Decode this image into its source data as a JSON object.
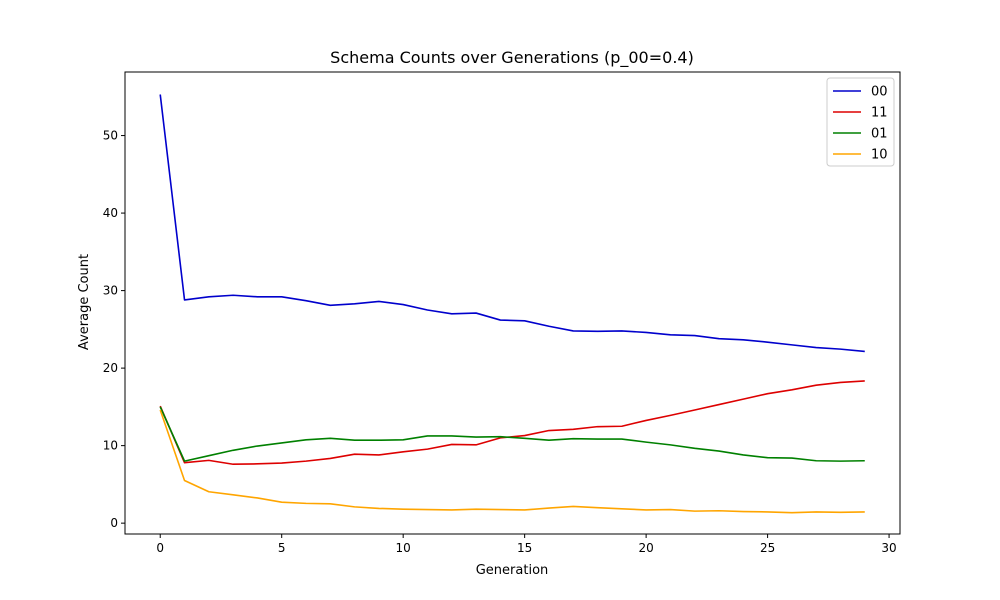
{
  "chart_data": {
    "type": "line",
    "title": "Schema Counts over Generations (p_00=0.4)",
    "xlabel": "Generation",
    "ylabel": "Average Count",
    "xlim": [
      -1.45,
      30.45
    ],
    "ylim": [
      -1.4,
      58.2
    ],
    "xticks": [
      0,
      5,
      10,
      15,
      20,
      25,
      30
    ],
    "yticks": [
      0,
      10,
      20,
      30,
      40,
      50
    ],
    "grid": false,
    "legend_position": "top-right",
    "x": [
      0,
      1,
      2,
      3,
      4,
      5,
      6,
      7,
      8,
      9,
      10,
      11,
      12,
      13,
      14,
      15,
      16,
      17,
      18,
      19,
      20,
      21,
      22,
      23,
      24,
      25,
      26,
      27,
      28,
      29
    ],
    "series": [
      {
        "name": "00",
        "color": "#0000cc",
        "values": [
          55.3,
          28.8,
          29.2,
          29.4,
          29.2,
          29.2,
          28.7,
          28.1,
          28.3,
          28.6,
          28.2,
          27.5,
          27.0,
          27.1,
          26.2,
          26.1,
          25.4,
          24.8,
          24.75,
          24.8,
          24.6,
          24.3,
          24.2,
          23.8,
          23.65,
          23.35,
          23.0,
          22.65,
          22.45,
          22.15
        ]
      },
      {
        "name": "11",
        "color": "#dd0000",
        "values": [
          15.1,
          7.8,
          8.1,
          7.6,
          7.65,
          7.75,
          8.0,
          8.35,
          8.9,
          8.8,
          9.2,
          9.55,
          10.15,
          10.1,
          11.0,
          11.3,
          11.95,
          12.1,
          12.45,
          12.5,
          13.25,
          13.9,
          14.6,
          15.3,
          16.0,
          16.7,
          17.2,
          17.8,
          18.15,
          18.35
        ]
      },
      {
        "name": "01",
        "color": "#008000",
        "values": [
          15.0,
          8.0,
          8.7,
          9.4,
          9.95,
          10.35,
          10.75,
          10.95,
          10.7,
          10.7,
          10.75,
          11.25,
          11.25,
          11.1,
          11.15,
          10.95,
          10.7,
          10.9,
          10.85,
          10.85,
          10.45,
          10.1,
          9.65,
          9.3,
          8.8,
          8.45,
          8.4,
          8.05,
          8.0,
          8.05
        ]
      },
      {
        "name": "10",
        "color": "#ffa500",
        "values": [
          14.6,
          5.5,
          4.05,
          3.65,
          3.25,
          2.7,
          2.55,
          2.5,
          2.1,
          1.9,
          1.8,
          1.75,
          1.7,
          1.8,
          1.75,
          1.7,
          1.95,
          2.15,
          2.0,
          1.85,
          1.7,
          1.75,
          1.55,
          1.6,
          1.5,
          1.45,
          1.35,
          1.45,
          1.4,
          1.45
        ]
      }
    ]
  }
}
